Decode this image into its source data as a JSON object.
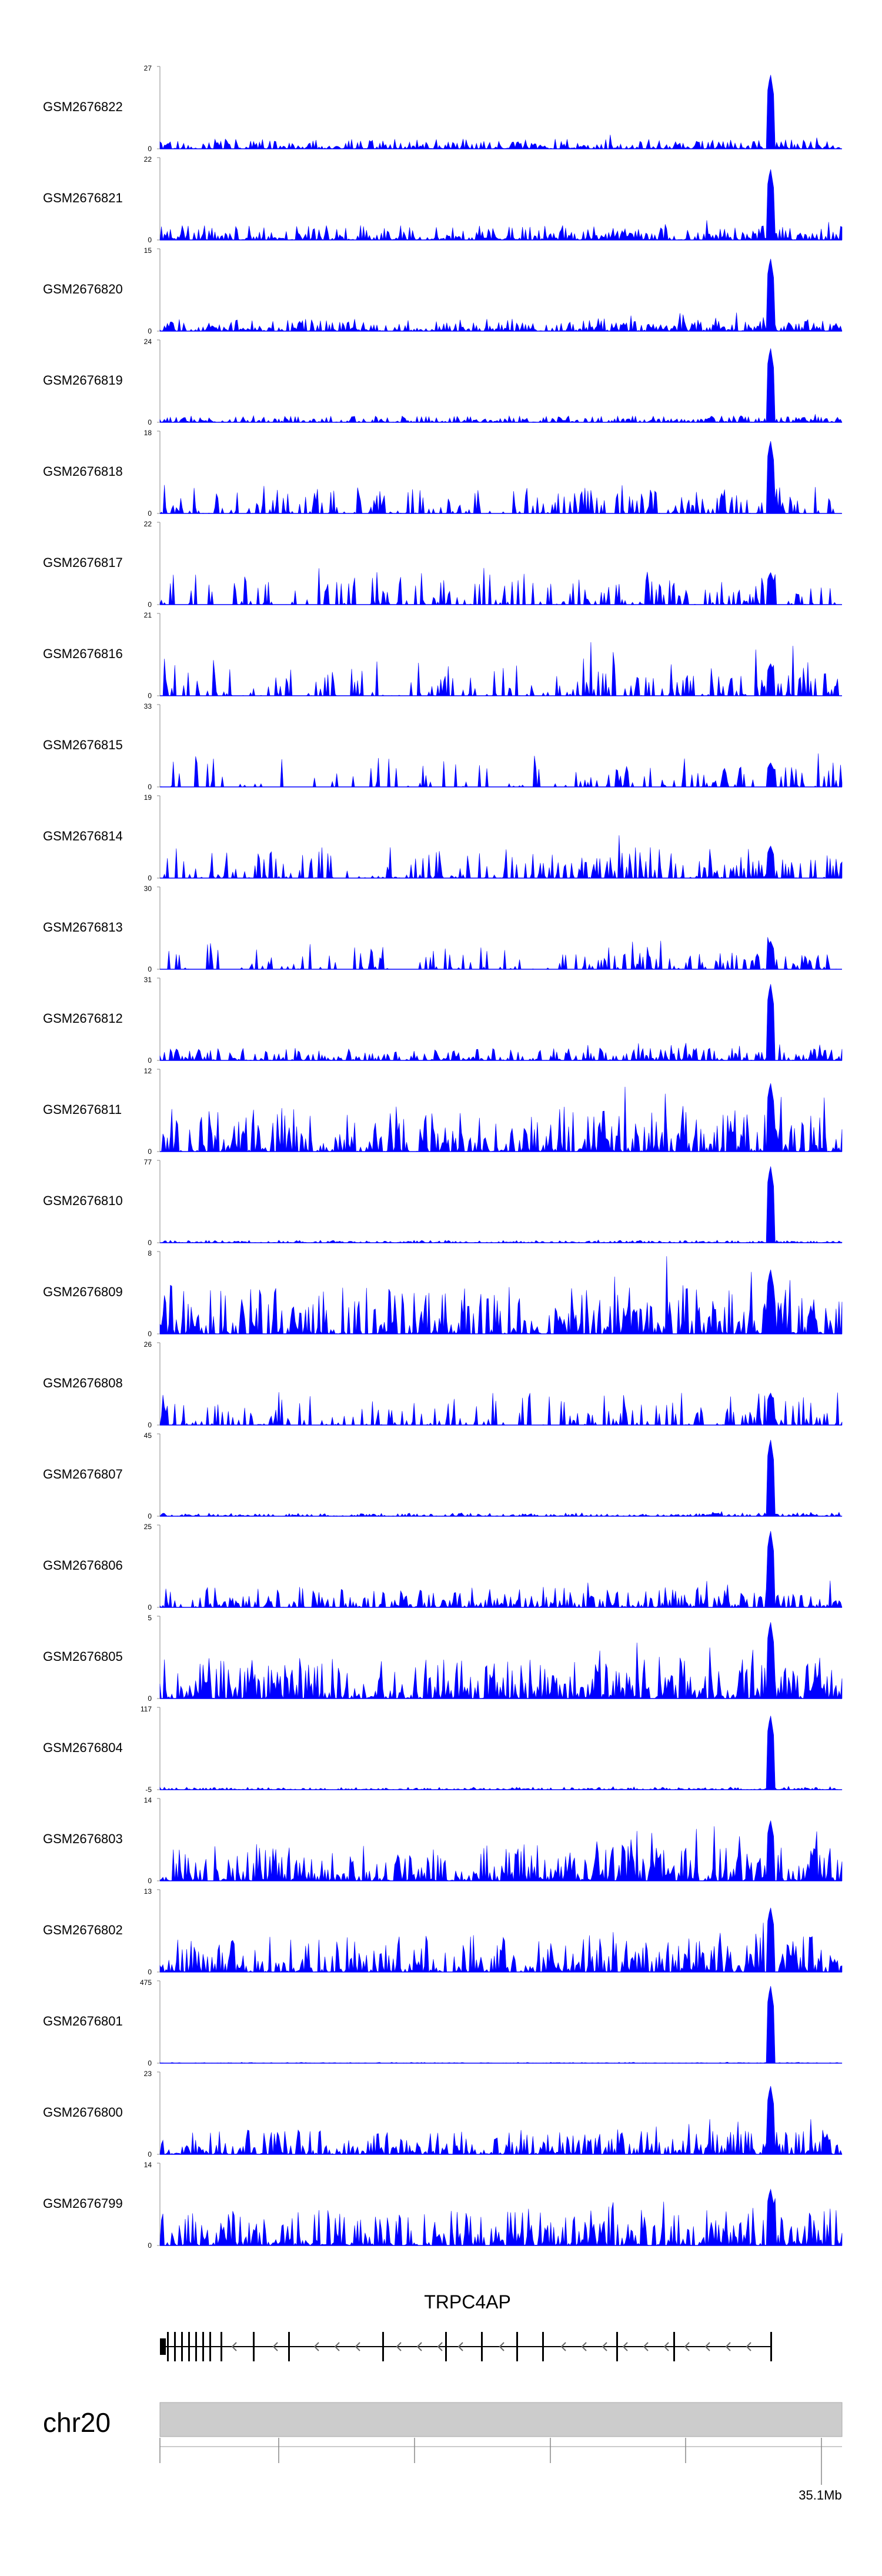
{
  "chart_data": {
    "type": "area",
    "title": "",
    "xlabel": "",
    "ylabel": "",
    "color": "#0000ff",
    "grid": false,
    "tracks": [
      {
        "name": "GSM2676822",
        "ymax": "27",
        "ymin": "0",
        "peak": 0.92,
        "noise": 0.12,
        "sparse": 0.0
      },
      {
        "name": "GSM2676821",
        "ymax": "22",
        "ymin": "0",
        "peak": 0.88,
        "noise": 0.18,
        "sparse": 0.0
      },
      {
        "name": "GSM2676820",
        "ymax": "15",
        "ymin": "0",
        "peak": 0.9,
        "noise": 0.15,
        "sparse": 0.0
      },
      {
        "name": "GSM2676819",
        "ymax": "24",
        "ymin": "0",
        "peak": 0.92,
        "noise": 0.08,
        "sparse": 0.0
      },
      {
        "name": "GSM2676818",
        "ymax": "18",
        "ymin": "0",
        "peak": 0.9,
        "noise": 0.35,
        "sparse": 0.55
      },
      {
        "name": "GSM2676817",
        "ymax": "22",
        "ymin": "0",
        "peak": 0.4,
        "noise": 0.45,
        "sparse": 0.65
      },
      {
        "name": "GSM2676816",
        "ymax": "21",
        "ymin": "0",
        "peak": 0.4,
        "noise": 0.45,
        "sparse": 0.6
      },
      {
        "name": "GSM2676815",
        "ymax": "33",
        "ymin": "0",
        "peak": 0.3,
        "noise": 0.4,
        "sparse": 0.78
      },
      {
        "name": "GSM2676814",
        "ymax": "19",
        "ymin": "0",
        "peak": 0.4,
        "noise": 0.4,
        "sparse": 0.5
      },
      {
        "name": "GSM2676813",
        "ymax": "30",
        "ymin": "0",
        "peak": 0.35,
        "noise": 0.35,
        "sparse": 0.72
      },
      {
        "name": "GSM2676812",
        "ymax": "31",
        "ymin": "0",
        "peak": 0.95,
        "noise": 0.15,
        "sparse": 0.1
      },
      {
        "name": "GSM2676811",
        "ymax": "12",
        "ymin": "0",
        "peak": 0.85,
        "noise": 0.55,
        "sparse": 0.15
      },
      {
        "name": "GSM2676810",
        "ymax": "77",
        "ymin": "0",
        "peak": 0.95,
        "noise": 0.03,
        "sparse": 0.0
      },
      {
        "name": "GSM2676809",
        "ymax": "8",
        "ymin": "0",
        "peak": 0.8,
        "noise": 0.6,
        "sparse": 0.1
      },
      {
        "name": "GSM2676808",
        "ymax": "26",
        "ymin": "0",
        "peak": 0.4,
        "noise": 0.4,
        "sparse": 0.6
      },
      {
        "name": "GSM2676807",
        "ymax": "45",
        "ymin": "0",
        "peak": 0.95,
        "noise": 0.04,
        "sparse": 0.0
      },
      {
        "name": "GSM2676806",
        "ymax": "25",
        "ymin": "0",
        "peak": 0.95,
        "noise": 0.25,
        "sparse": 0.15
      },
      {
        "name": "GSM2676805",
        "ymax": "5",
        "ymin": "0",
        "peak": 0.95,
        "noise": 0.5,
        "sparse": 0.0
      },
      {
        "name": "GSM2676804",
        "ymax": "117",
        "ymin": "-5",
        "peak": 0.92,
        "noise": 0.03,
        "sparse": 0.0
      },
      {
        "name": "GSM2676803",
        "ymax": "14",
        "ymin": "0",
        "peak": 0.75,
        "noise": 0.45,
        "sparse": 0.05
      },
      {
        "name": "GSM2676802",
        "ymax": "13",
        "ymin": "0",
        "peak": 0.8,
        "noise": 0.45,
        "sparse": 0.05
      },
      {
        "name": "GSM2676801",
        "ymax": "475",
        "ymin": "0",
        "peak": 0.96,
        "noise": 0.01,
        "sparse": 0.0
      },
      {
        "name": "GSM2676800",
        "ymax": "23",
        "ymin": "0",
        "peak": 0.85,
        "noise": 0.3,
        "sparse": 0.05
      },
      {
        "name": "GSM2676799",
        "ymax": "14",
        "ymin": "0",
        "peak": 0.7,
        "noise": 0.45,
        "sparse": 0.05
      }
    ],
    "gene": {
      "name": "TRPC4AP",
      "strand": "-"
    },
    "chromosome": {
      "name": "chr20",
      "position_label": "35.1Mb"
    }
  }
}
